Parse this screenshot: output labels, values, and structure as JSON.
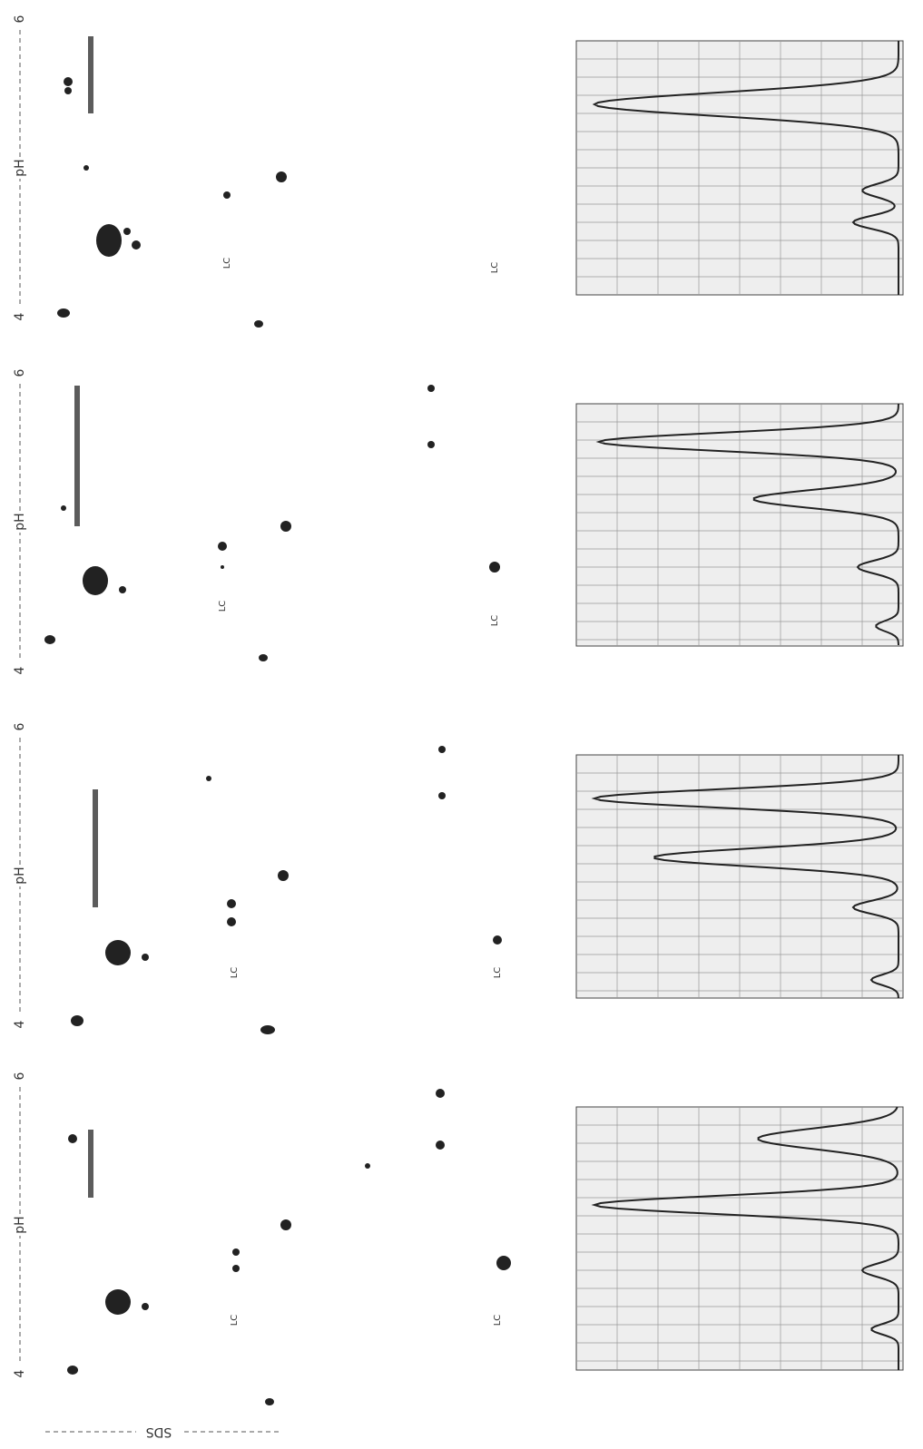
{
  "panels": [
    {
      "ph_low": "4",
      "ph_label": "pH",
      "ph_high": "6",
      "lc_labels": [
        "LC",
        "LC"
      ]
    },
    {
      "ph_low": "4",
      "ph_label": "pH",
      "ph_high": "6",
      "lc_labels": [
        "LC",
        "LC"
      ]
    },
    {
      "ph_low": "4",
      "ph_label": "pH",
      "ph_high": "6",
      "lc_labels": [
        "LC",
        "LC"
      ]
    },
    {
      "ph_low": "4",
      "ph_label": "pH",
      "ph_high": "6",
      "lc_labels": [
        "LC",
        "LC"
      ]
    }
  ],
  "sds_label": "SDS"
}
